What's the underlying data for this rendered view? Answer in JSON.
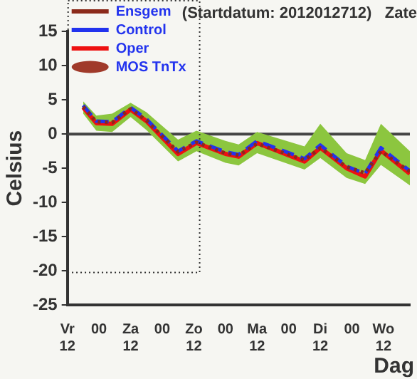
{
  "chart_data": {
    "type": "line",
    "title": "(Startdatum: 2012012712)   Zate",
    "xlabel": "Dag",
    "ylabel": "Celsius",
    "x": [
      "2012-01-27T18:00",
      "2012-01-27T23:00",
      "2012-01-28T05:00",
      "2012-01-28T12:00",
      "2012-01-28T18:00",
      "2012-01-29T06:00",
      "2012-01-29T13:00",
      "2012-01-30T00:00",
      "2012-01-30T05:00",
      "2012-01-30T12:00",
      "2012-01-31T06:00",
      "2012-01-31T12:00",
      "2012-01-31T22:00",
      "2012-02-01T05:00",
      "2012-02-01T11:00",
      "2012-02-01T22:00"
    ],
    "series": [
      {
        "name": "Ensgem",
        "color": "#8b2a1a",
        "line_style": "dotted",
        "values": [
          4.0,
          1.8,
          1.7,
          3.7,
          2.0,
          -2.6,
          -1.2,
          -2.8,
          -3.1,
          -1.4,
          -3.8,
          -2.0,
          -4.8,
          -5.7,
          -2.5,
          -5.5
        ],
        "lower": [
          3.0,
          0.5,
          0.3,
          2.5,
          0.6,
          -4.0,
          -2.5,
          -4.2,
          -4.6,
          -2.8,
          -5.2,
          -3.5,
          -6.4,
          -7.3,
          -4.5,
          -7.5
        ],
        "upper": [
          4.8,
          2.7,
          3.0,
          4.6,
          3.2,
          -0.8,
          0.5,
          -1.0,
          -1.5,
          0.3,
          -1.8,
          1.5,
          -2.8,
          -3.8,
          1.5,
          -2.5
        ]
      },
      {
        "name": "Control",
        "color": "#2233ee",
        "line_style": "dashed",
        "values": [
          4.2,
          1.9,
          1.8,
          3.9,
          2.2,
          -2.5,
          -1.0,
          -2.6,
          -3.0,
          -1.0,
          -3.6,
          -1.6,
          -4.7,
          -5.8,
          -2.0,
          -5.4
        ]
      },
      {
        "name": "Oper",
        "color": "#ee1111",
        "line_style": "solid",
        "values": [
          3.9,
          1.6,
          1.5,
          3.6,
          1.9,
          -2.9,
          -1.3,
          -2.9,
          -3.3,
          -1.3,
          -4.0,
          -2.0,
          -5.0,
          -6.2,
          -2.4,
          -5.8
        ]
      },
      {
        "name": "MOS TnTx",
        "type": "scatter",
        "color": "#a03a2a",
        "values": [
          null,
          null,
          null,
          null,
          null,
          null,
          null,
          null,
          null,
          null,
          null,
          null,
          null,
          null,
          null,
          null
        ]
      }
    ],
    "xlim": [
      "2012-01-27T12:00",
      "2012-02-01T22:00"
    ],
    "xticks": [
      {
        "value": "2012-01-27T12:00",
        "label": "Vr\n12"
      },
      {
        "value": "2012-01-28T00:00",
        "label": "00"
      },
      {
        "value": "2012-01-28T12:00",
        "label": "Za\n12"
      },
      {
        "value": "2012-01-29T00:00",
        "label": "00"
      },
      {
        "value": "2012-01-29T12:00",
        "label": "Zo\n12"
      },
      {
        "value": "2012-01-30T00:00",
        "label": "00"
      },
      {
        "value": "2012-01-30T12:00",
        "label": "Ma\n12"
      },
      {
        "value": "2012-01-31T00:00",
        "label": "00"
      },
      {
        "value": "2012-01-31T12:00",
        "label": "Di\n12"
      },
      {
        "value": "2012-02-01T00:00",
        "label": "00"
      },
      {
        "value": "2012-02-01T12:00",
        "label": "Wo\n12"
      }
    ],
    "ylim": [
      -25,
      15
    ],
    "yticks": [
      -25,
      -20,
      -15,
      -10,
      -5,
      0,
      5,
      10,
      15
    ],
    "ref_lines": [
      {
        "axis": "y",
        "value": 0,
        "color": "#444444"
      }
    ],
    "legend": "top left",
    "grid": false
  }
}
